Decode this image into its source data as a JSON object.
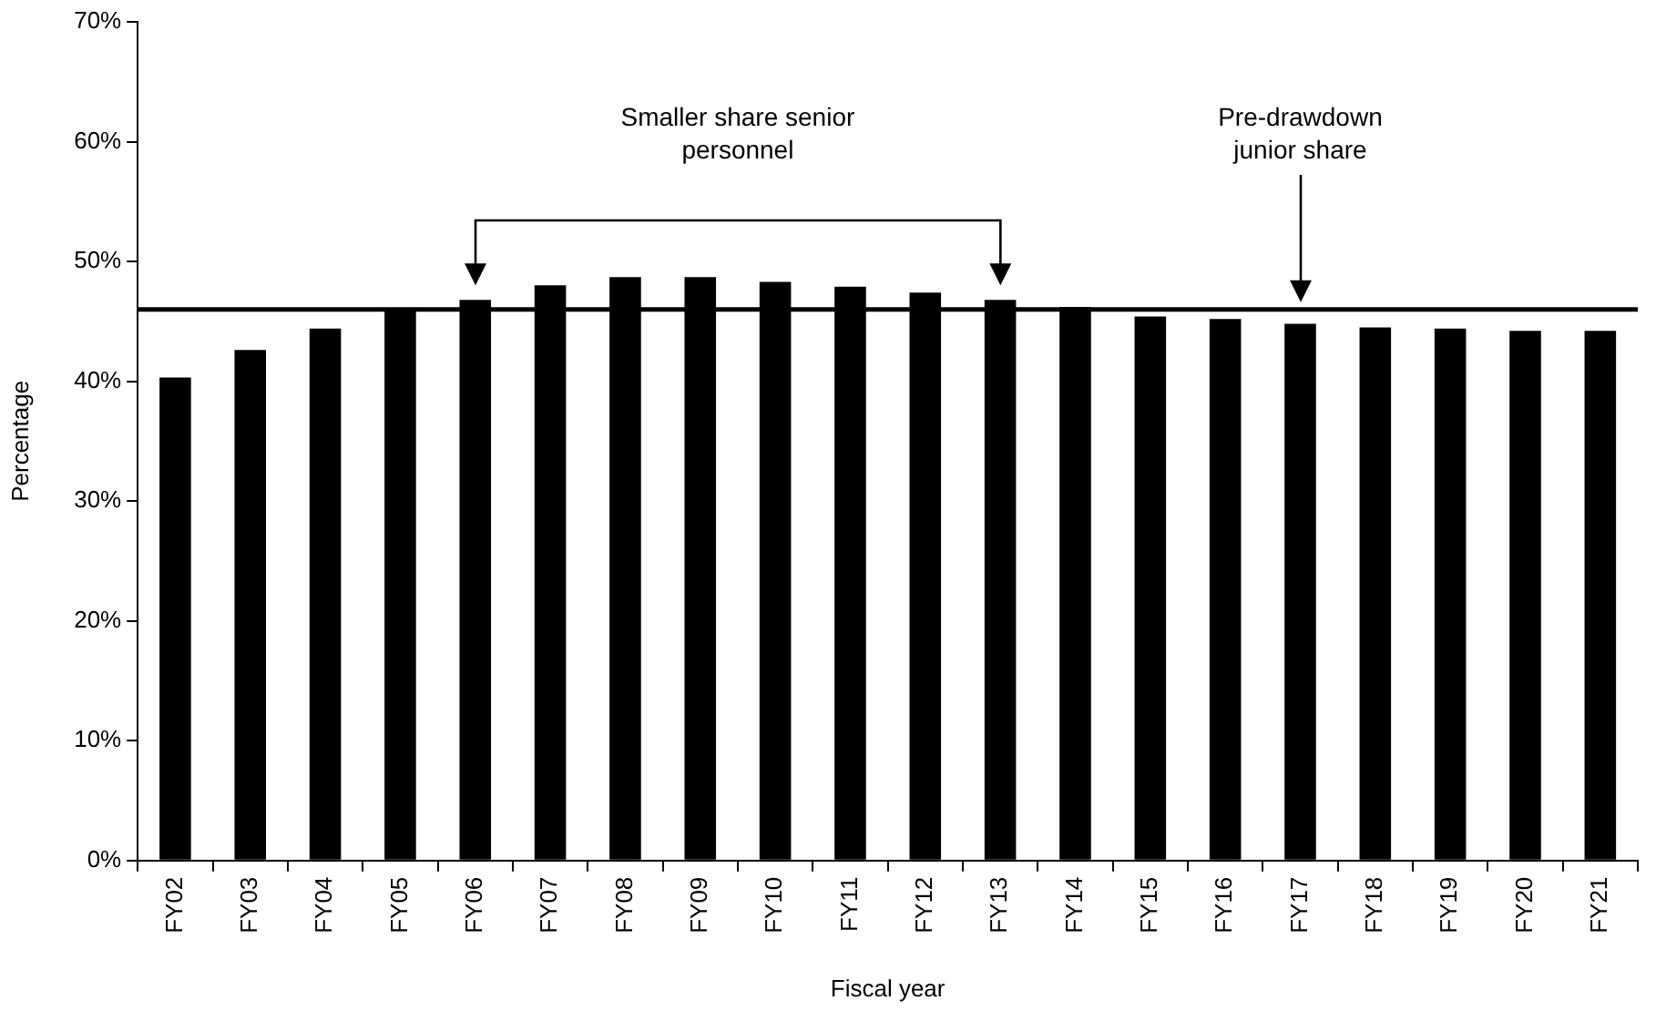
{
  "chart_data": {
    "type": "bar",
    "xlabel": "Fiscal year",
    "ylabel": "Percentage",
    "categories": [
      "FY02",
      "FY03",
      "FY04",
      "FY05",
      "FY06",
      "FY07",
      "FY08",
      "FY09",
      "FY10",
      "FY11",
      "FY12",
      "FY13",
      "FY14",
      "FY15",
      "FY16",
      "FY17",
      "FY18",
      "FY19",
      "FY20",
      "FY21"
    ],
    "values": [
      40.3,
      42.6,
      44.4,
      46.0,
      46.8,
      48.0,
      48.7,
      48.7,
      48.3,
      47.9,
      47.4,
      46.8,
      46.2,
      45.4,
      45.2,
      44.8,
      44.5,
      44.4,
      44.2,
      44.2
    ],
    "color": "#000000",
    "ylim": [
      0,
      70
    ],
    "yticks": [
      {
        "value": 0,
        "label": "0%"
      },
      {
        "value": 10,
        "label": "10%"
      },
      {
        "value": 20,
        "label": "20%"
      },
      {
        "value": 30,
        "label": "30%"
      },
      {
        "value": 40,
        "label": "40%"
      },
      {
        "value": 50,
        "label": "50%"
      },
      {
        "value": 60,
        "label": "60%"
      },
      {
        "value": 70,
        "label": "70%"
      }
    ],
    "grid": false,
    "legend": false,
    "ref_lines": [
      {
        "axis": "y",
        "value": 46,
        "label": "Pre-drawdown junior share",
        "color": "#000000"
      }
    ],
    "annotations": [
      "Smaller share senior personnel"
    ]
  }
}
